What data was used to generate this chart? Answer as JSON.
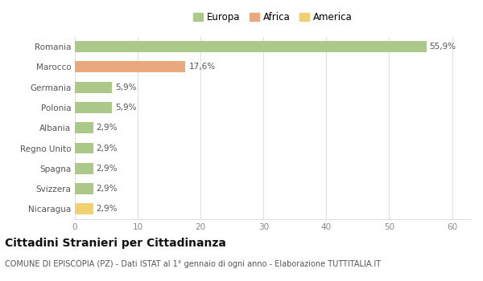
{
  "categories": [
    "Romania",
    "Marocco",
    "Germania",
    "Polonia",
    "Albania",
    "Regno Unito",
    "Spagna",
    "Svizzera",
    "Nicaragua"
  ],
  "values": [
    55.9,
    17.6,
    5.9,
    5.9,
    2.9,
    2.9,
    2.9,
    2.9,
    2.9
  ],
  "labels": [
    "55,9%",
    "17,6%",
    "5,9%",
    "5,9%",
    "2,9%",
    "2,9%",
    "2,9%",
    "2,9%",
    "2,9%"
  ],
  "colors": [
    "#adc98a",
    "#e8a97e",
    "#adc98a",
    "#adc98a",
    "#adc98a",
    "#adc98a",
    "#adc98a",
    "#adc98a",
    "#f0d070"
  ],
  "legend_labels": [
    "Europa",
    "Africa",
    "America"
  ],
  "legend_colors": [
    "#adc98a",
    "#e8a97e",
    "#f0d070"
  ],
  "xlim": [
    0,
    63
  ],
  "xticks": [
    0,
    10,
    20,
    30,
    40,
    50,
    60
  ],
  "title": "Cittadini Stranieri per Cittadinanza",
  "subtitle": "COMUNE DI EPISCOPIA (PZ) - Dati ISTAT al 1° gennaio di ogni anno - Elaborazione TUTTITALIA.IT",
  "bg_color": "#ffffff",
  "plot_bg_color": "#ffffff",
  "grid_color": "#e0e0e0",
  "bar_height": 0.55,
  "label_fontsize": 7.5,
  "ytick_fontsize": 7.5,
  "xtick_fontsize": 7.5,
  "title_fontsize": 10,
  "subtitle_fontsize": 7,
  "legend_fontsize": 8.5,
  "label_color": "#555555",
  "ytick_color": "#555555",
  "xtick_color": "#888888"
}
